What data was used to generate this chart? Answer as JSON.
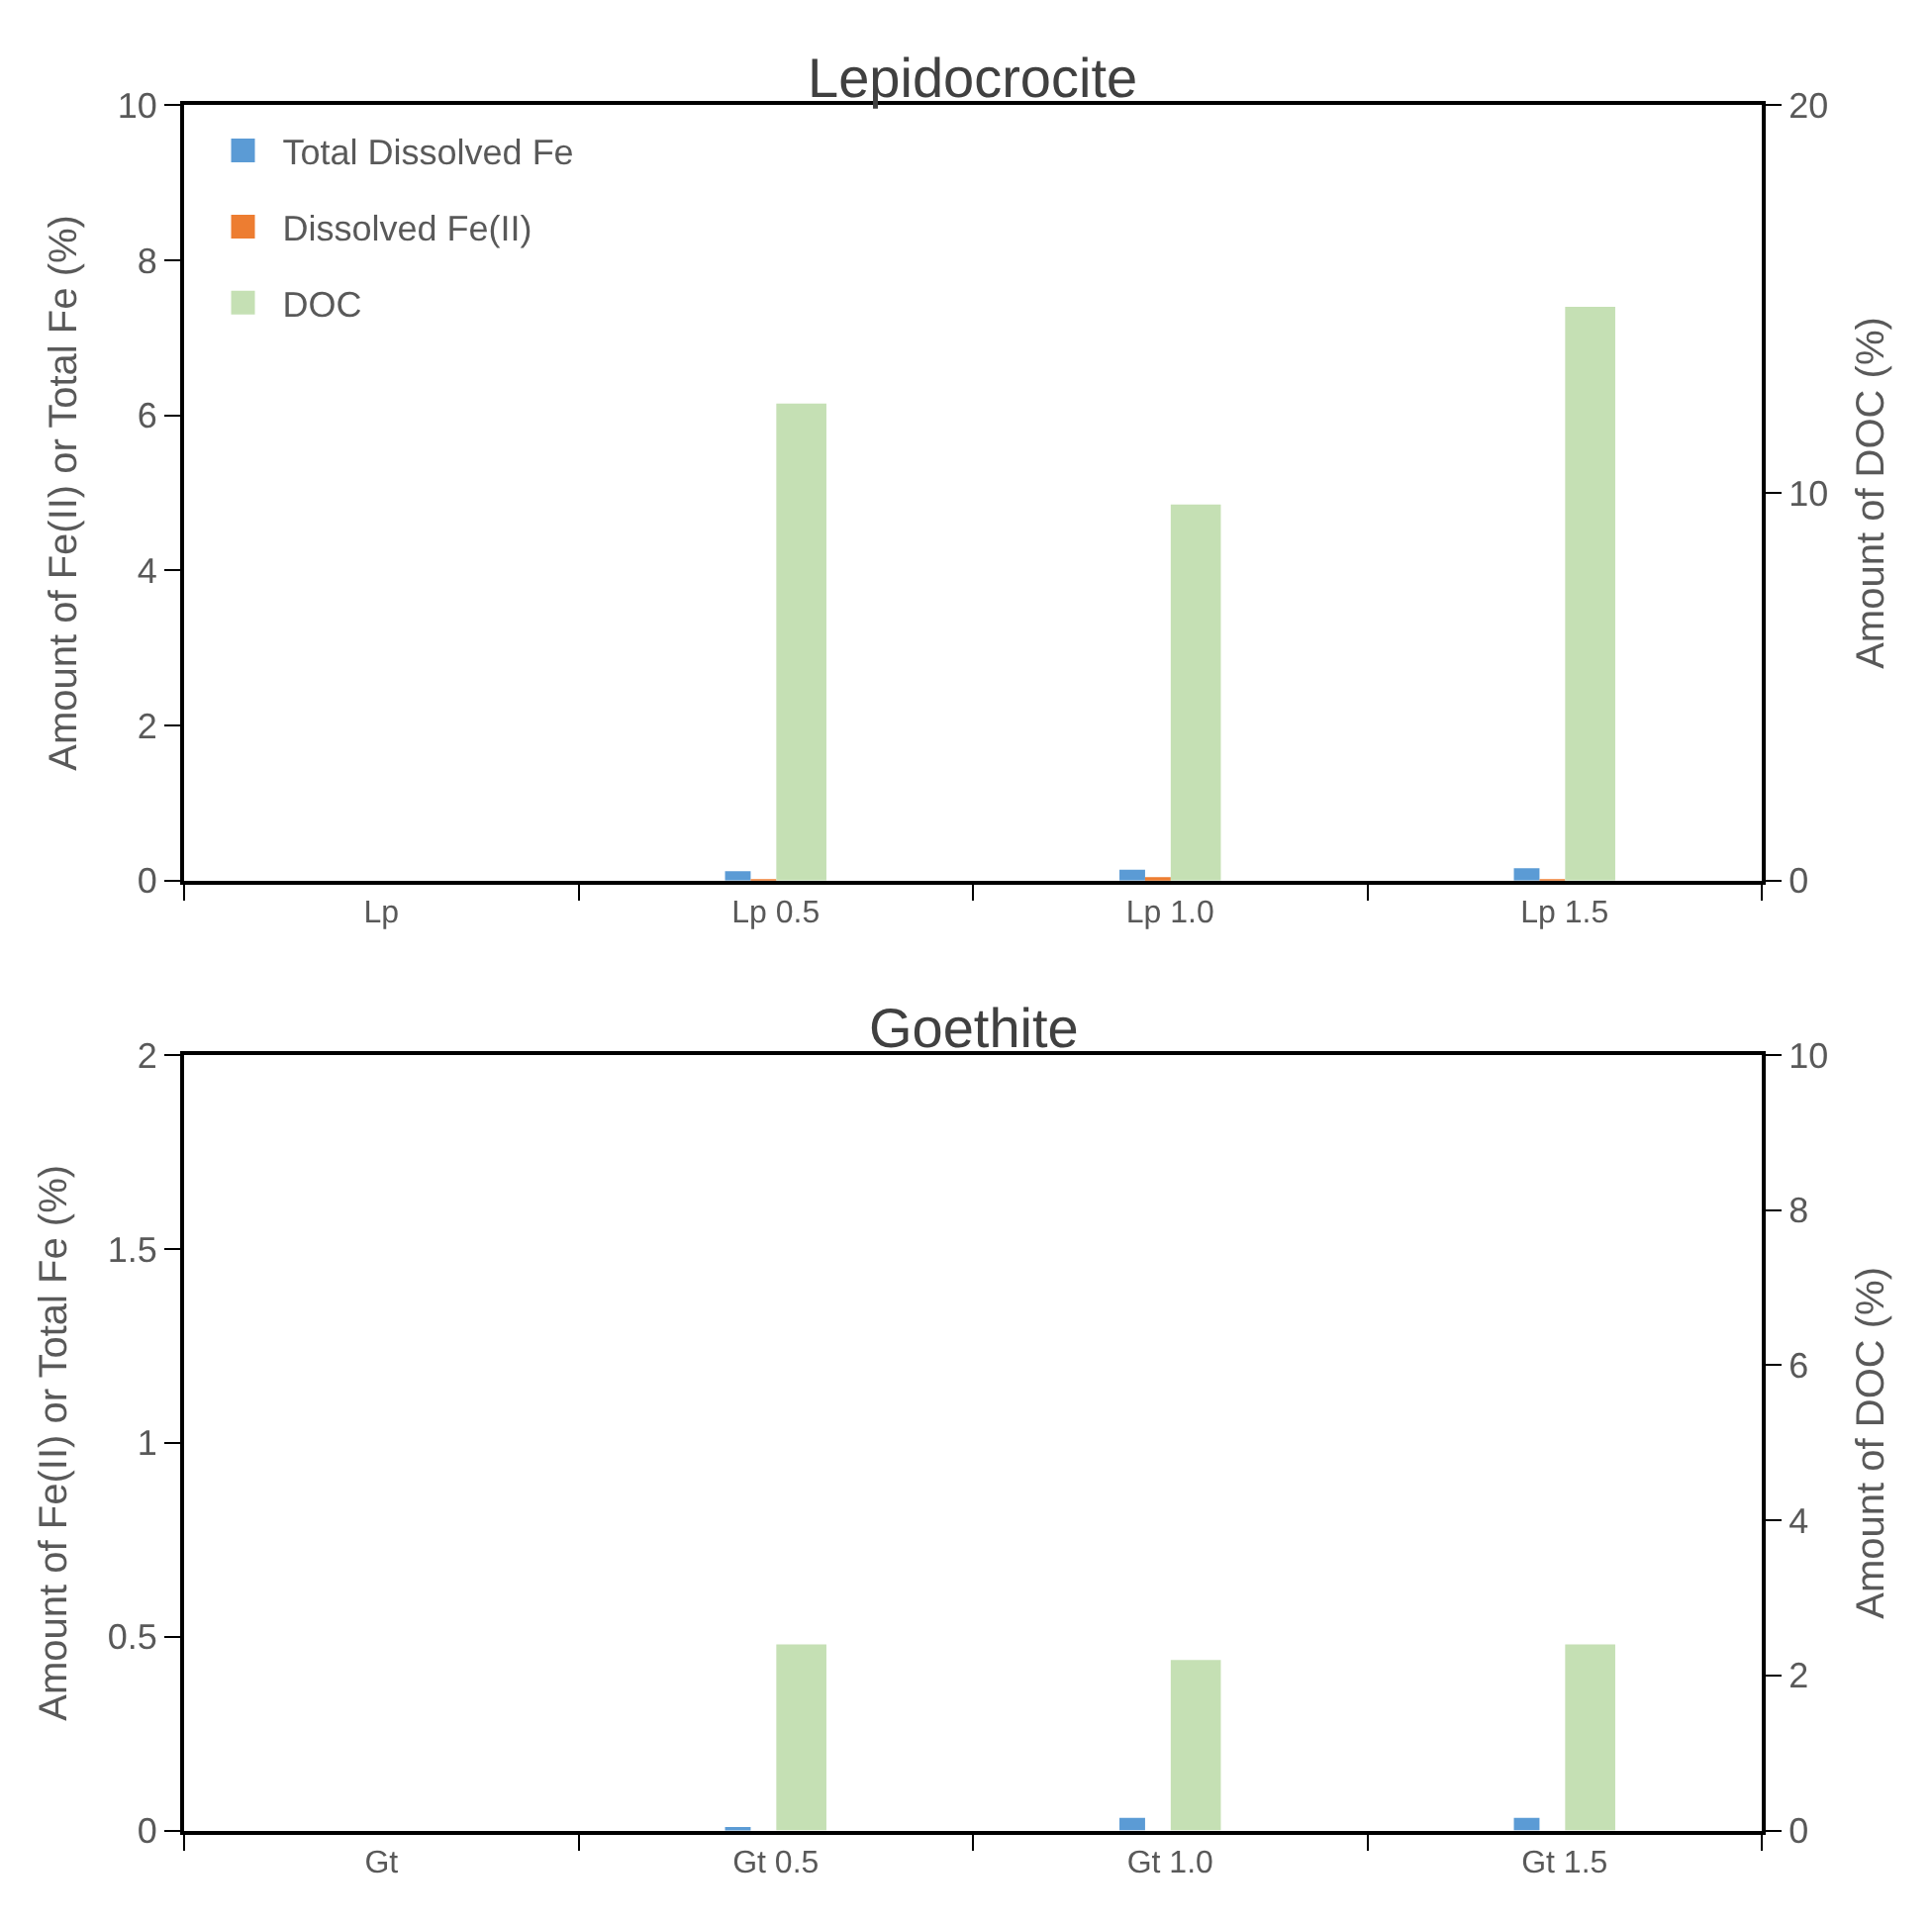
{
  "chart_data": [
    {
      "type": "bar",
      "title": "Lepidocrocite",
      "categories": [
        "Lp",
        "Lp 0.5",
        "Lp 1.0",
        "Lp 1.5"
      ],
      "series": [
        {
          "name": "Total Dissolved Fe",
          "color": "#5b9bd5",
          "values": [
            0,
            0.12,
            0.14,
            0.16
          ]
        },
        {
          "name": "Dissolved Fe(II)",
          "color": "#ed7d31",
          "values": [
            0,
            0.01,
            0.02,
            0.01
          ]
        },
        {
          "name": "DOC",
          "color": "#c5e0b4",
          "values": [
            0,
            12.3,
            9.7,
            14.8
          ],
          "axis": "y2"
        }
      ],
      "ylabel": "Amount of Fe(II) or Total Fe (%)",
      "y2label": "Amount of DOC (%)",
      "ylim": [
        0,
        10
      ],
      "yticks": [
        0,
        2,
        4,
        6,
        8,
        10
      ],
      "y2lim": [
        0,
        20
      ],
      "y2ticks": [
        0,
        10,
        20
      ],
      "legend": "top left"
    },
    {
      "type": "bar",
      "title": "Goethite",
      "categories": [
        "Gt",
        "Gt 0.5",
        "Gt 1.0",
        "Gt 1.5"
      ],
      "series": [
        {
          "color": "#5b9bd5",
          "values": [
            0,
            0.004,
            0.033,
            0.033
          ]
        },
        {
          "color": "#ed7d31",
          "values": [
            0,
            0,
            0,
            0
          ]
        },
        {
          "color": "#c5e0b4",
          "values": [
            0,
            2.4,
            2.2,
            2.4
          ],
          "axis": "y2"
        }
      ],
      "ylabel": "Amount of Fe(II) or Total Fe (%)",
      "y2label": "Amount of DOC (%)",
      "ylim": [
        0,
        2
      ],
      "yticks": [
        0,
        0.5,
        1,
        1.5,
        2
      ],
      "y2lim": [
        0,
        10
      ],
      "y2ticks": [
        0,
        2,
        4,
        6,
        8,
        10
      ],
      "legend": false
    }
  ]
}
